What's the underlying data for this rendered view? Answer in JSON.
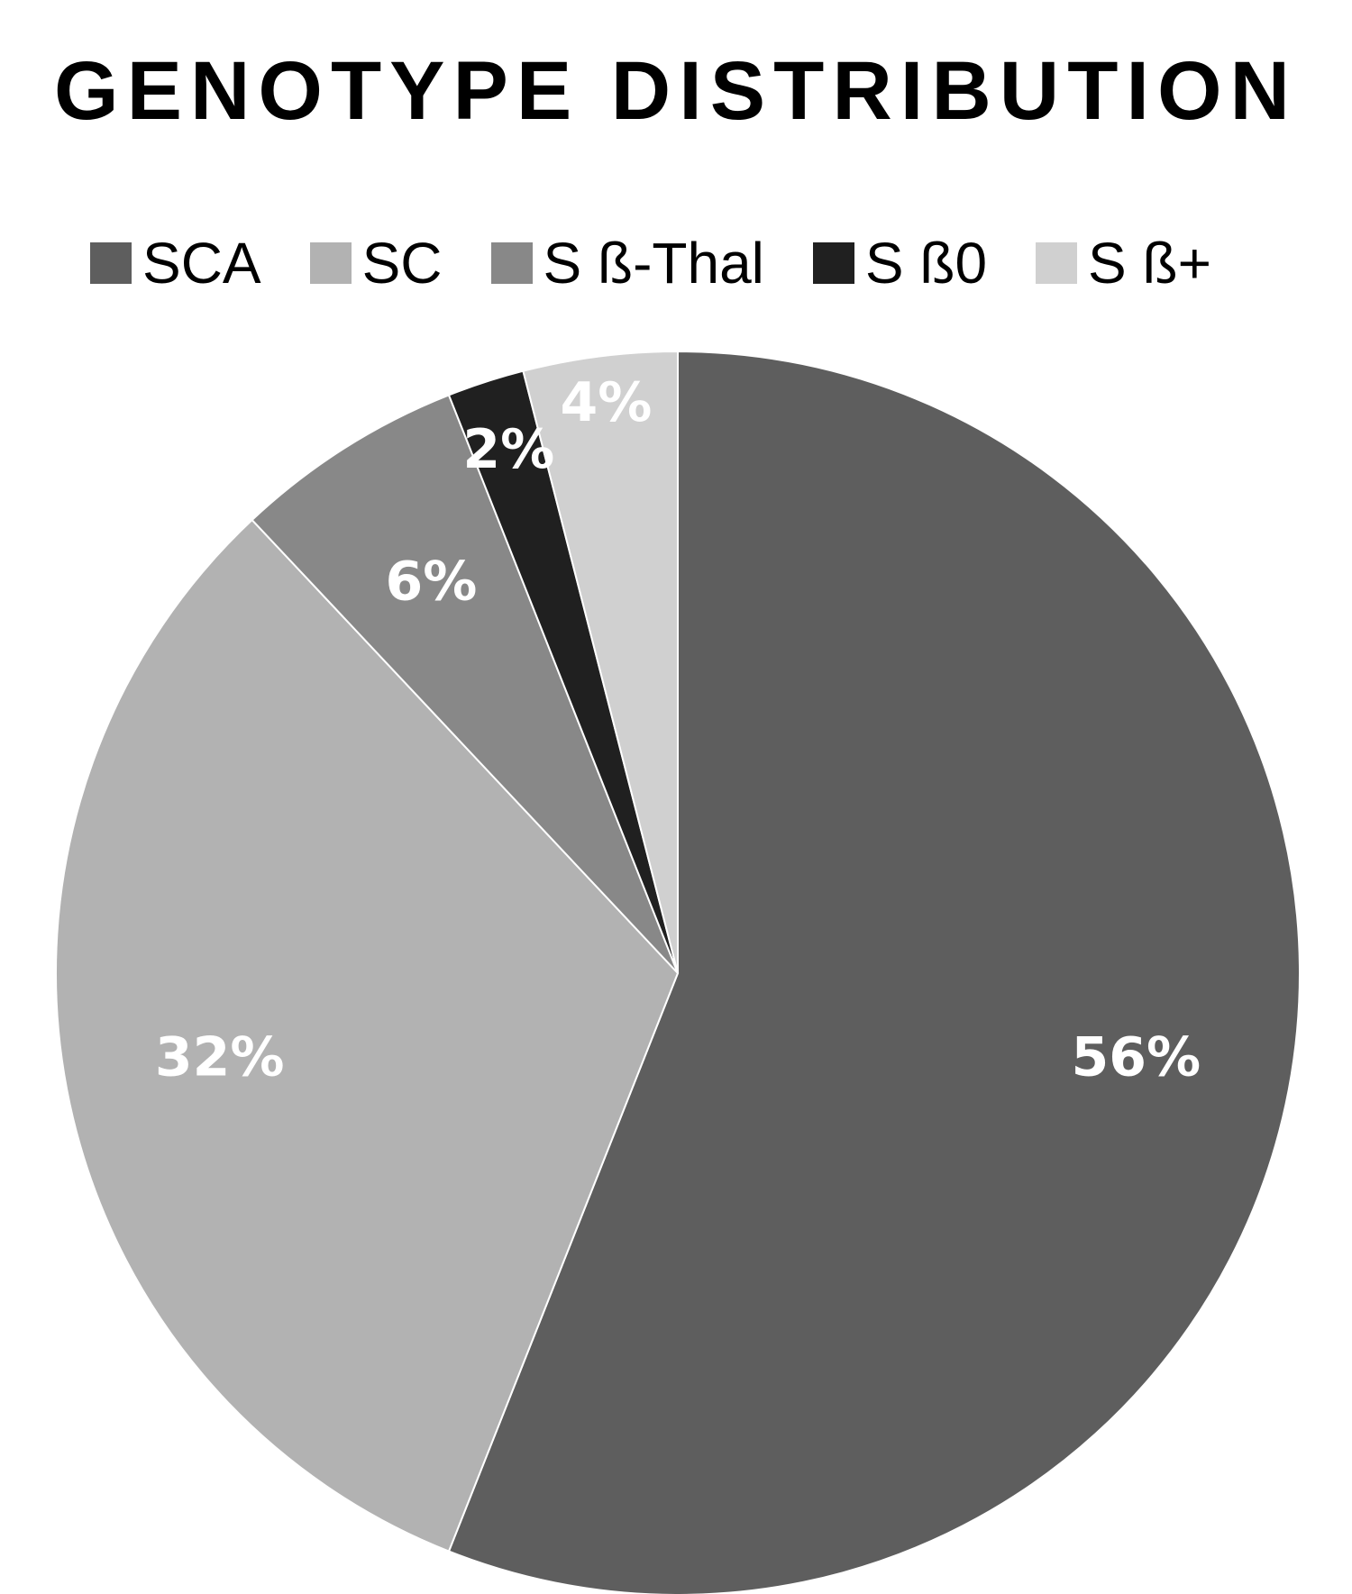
{
  "chart_data": {
    "type": "pie",
    "title": "GENOTYPE DISTRIBUTION",
    "categories": [
      "SCA",
      "SC",
      "S ß-Thal",
      "S ß0",
      "S ß+"
    ],
    "values": [
      56,
      32,
      6,
      2,
      4
    ],
    "data_labels": [
      "56%",
      "32%",
      "6%",
      "2%",
      "4%"
    ],
    "colors": [
      "#5e5e5e",
      "#b2b2b2",
      "#888888",
      "#202020",
      "#d0d0d0"
    ],
    "start_angle_deg": 0,
    "direction": "clockwise",
    "legend_position": "top"
  }
}
